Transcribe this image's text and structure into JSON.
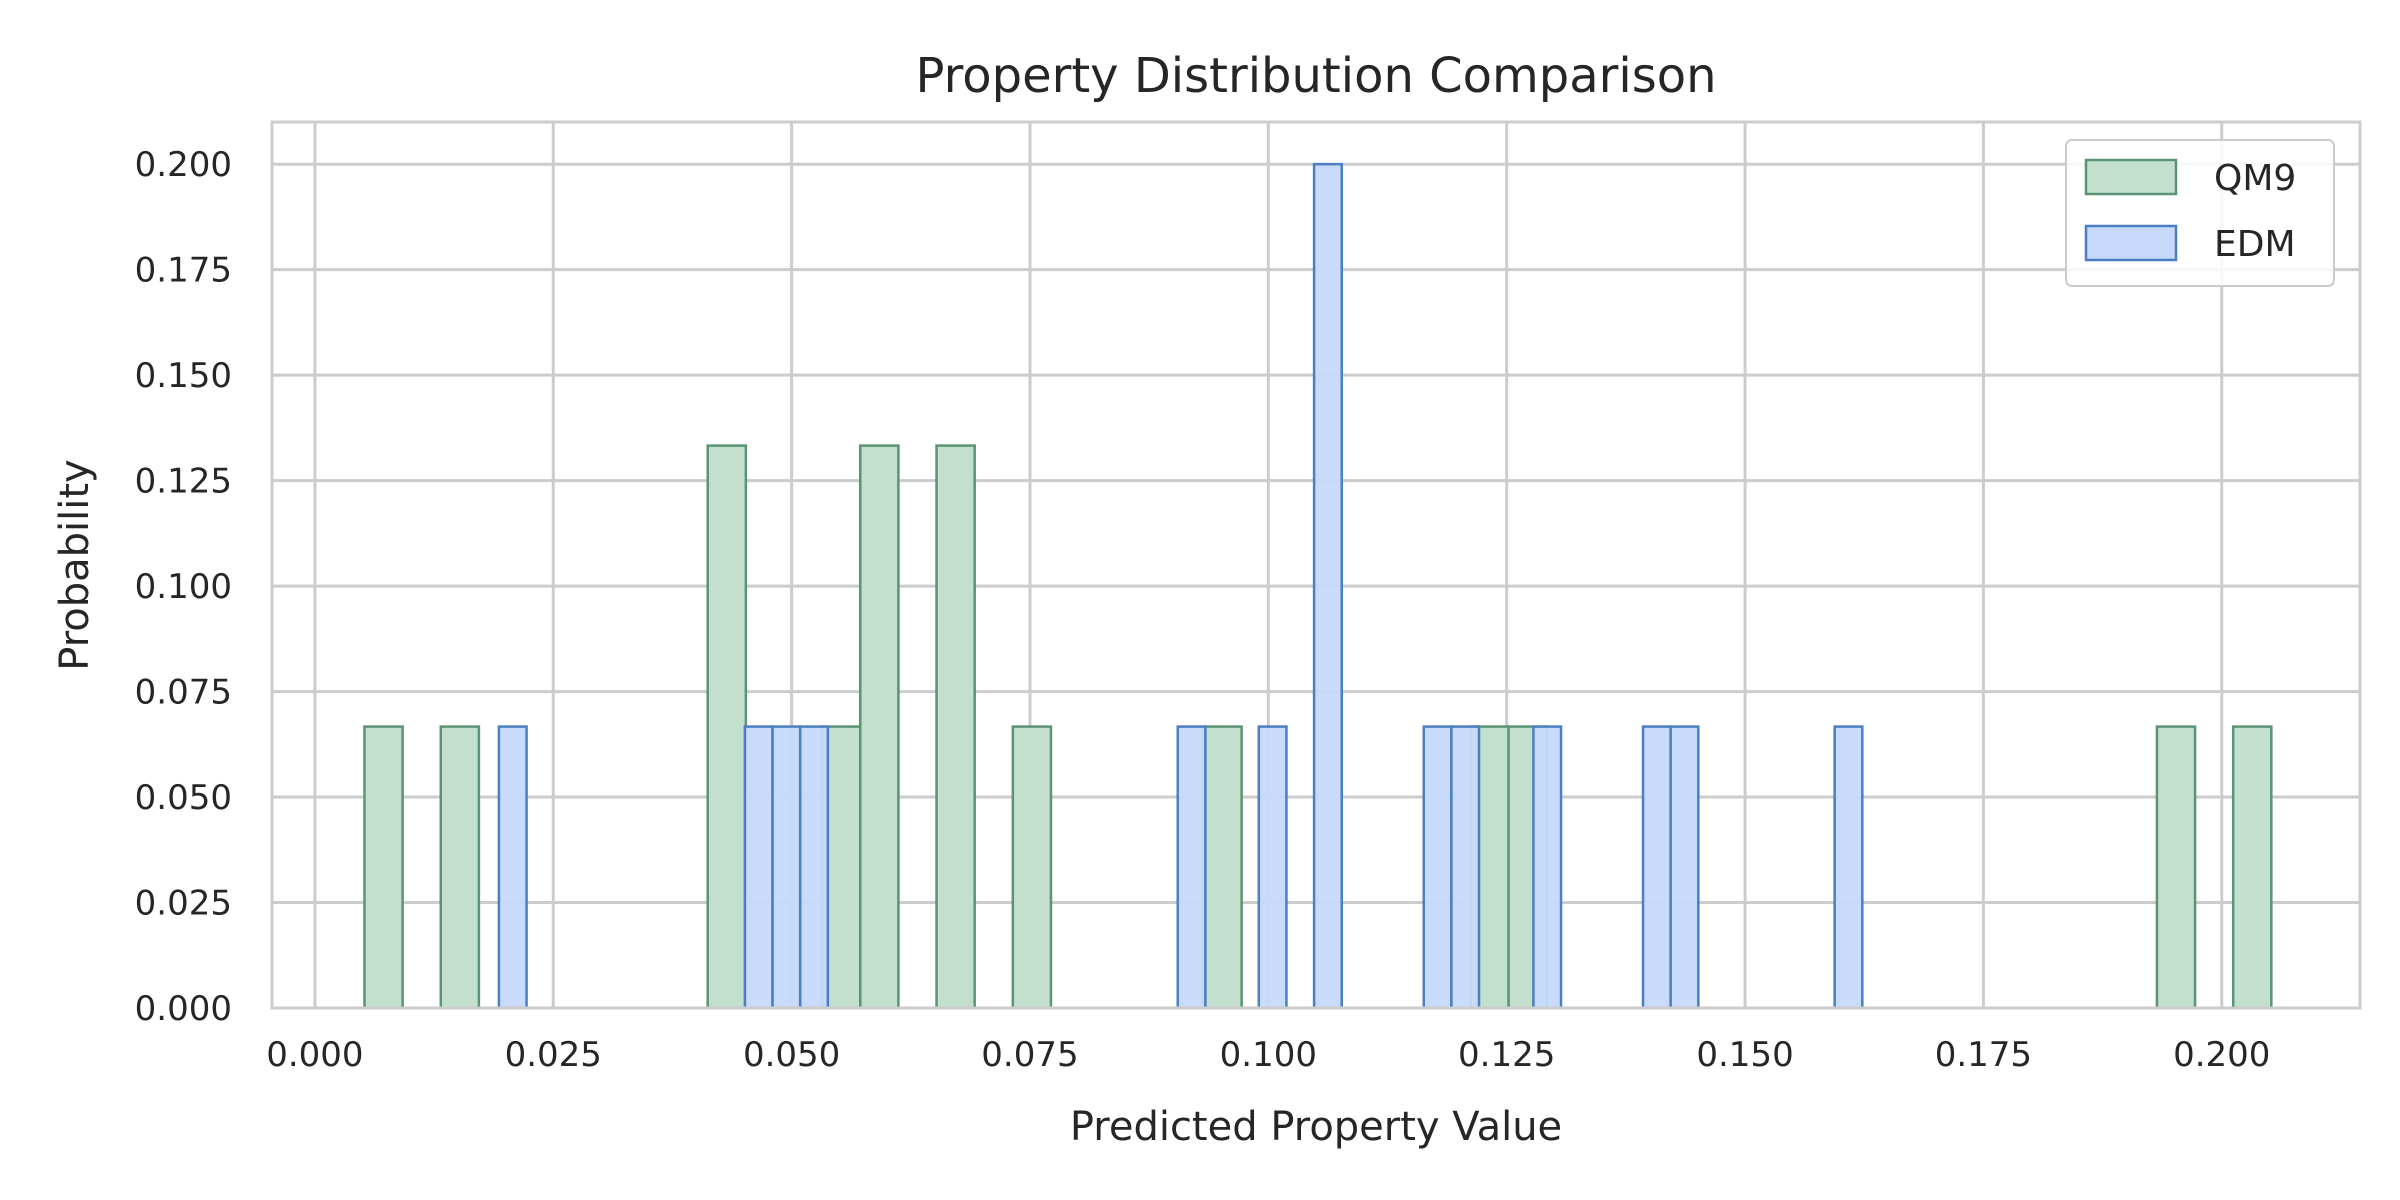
{
  "chart_data": {
    "type": "histogram",
    "title": "Property Distribution Comparison",
    "xlabel": "Predicted Property Value",
    "ylabel": "Probability",
    "xlim": [
      -0.0045,
      0.2145
    ],
    "ylim": [
      0,
      0.21
    ],
    "xticks": [
      "0.000",
      "0.025",
      "0.050",
      "0.075",
      "0.100",
      "0.125",
      "0.150",
      "0.175",
      "0.200"
    ],
    "yticks": [
      "0.000",
      "0.025",
      "0.050",
      "0.075",
      "0.100",
      "0.125",
      "0.150",
      "0.175",
      "0.200"
    ],
    "grid": true,
    "legend": "top-right",
    "series": [
      {
        "name": "QM9",
        "fill": "#c3e0cf",
        "stroke": "#5a9473",
        "bins": [
          {
            "x0": 0.0052,
            "x1": 0.0092,
            "y": 0.0667
          },
          {
            "x0": 0.0132,
            "x1": 0.0172,
            "y": 0.0667
          },
          {
            "x0": 0.0412,
            "x1": 0.0452,
            "y": 0.1333
          },
          {
            "x0": 0.0532,
            "x1": 0.0572,
            "y": 0.0667
          },
          {
            "x0": 0.0572,
            "x1": 0.0612,
            "y": 0.1333
          },
          {
            "x0": 0.0652,
            "x1": 0.0692,
            "y": 0.1333
          },
          {
            "x0": 0.0732,
            "x1": 0.0772,
            "y": 0.0667
          },
          {
            "x0": 0.0932,
            "x1": 0.0972,
            "y": 0.0667
          },
          {
            "x0": 0.1212,
            "x1": 0.1252,
            "y": 0.0667
          },
          {
            "x0": 0.1252,
            "x1": 0.1292,
            "y": 0.0667
          },
          {
            "x0": 0.1932,
            "x1": 0.1972,
            "y": 0.0667
          },
          {
            "x0": 0.2012,
            "x1": 0.2052,
            "y": 0.0667
          }
        ]
      },
      {
        "name": "EDM",
        "fill": "#c6d9fb",
        "stroke": "#4a7fc1",
        "bins": [
          {
            "x0": 0.0193,
            "x1": 0.0222,
            "y": 0.0667
          },
          {
            "x0": 0.0451,
            "x1": 0.048,
            "y": 0.0667
          },
          {
            "x0": 0.048,
            "x1": 0.0509,
            "y": 0.0667
          },
          {
            "x0": 0.0509,
            "x1": 0.0538,
            "y": 0.0667
          },
          {
            "x0": 0.0905,
            "x1": 0.0934,
            "y": 0.0667
          },
          {
            "x0": 0.099,
            "x1": 0.1019,
            "y": 0.0667
          },
          {
            "x0": 0.1048,
            "x1": 0.1077,
            "y": 0.2
          },
          {
            "x0": 0.1163,
            "x1": 0.1192,
            "y": 0.0667
          },
          {
            "x0": 0.1192,
            "x1": 0.1221,
            "y": 0.0667
          },
          {
            "x0": 0.1278,
            "x1": 0.1307,
            "y": 0.0667
          },
          {
            "x0": 0.1393,
            "x1": 0.1422,
            "y": 0.0667
          },
          {
            "x0": 0.1422,
            "x1": 0.1451,
            "y": 0.0667
          },
          {
            "x0": 0.1594,
            "x1": 0.1623,
            "y": 0.0667
          }
        ]
      }
    ]
  }
}
